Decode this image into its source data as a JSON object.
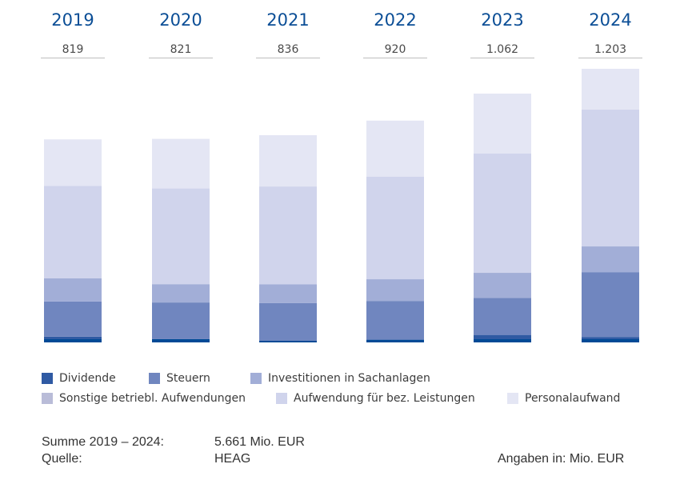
{
  "chart_data": {
    "type": "bar",
    "stacked": true,
    "title": "",
    "xlabel": "",
    "ylabel": "",
    "unit_note": "Angaben in: Mio. EUR",
    "categories": [
      "2019",
      "2020",
      "2021",
      "2022",
      "2023",
      "2024"
    ],
    "totals": [
      "819",
      "821",
      "836",
      "920",
      "1.062",
      "1.203"
    ],
    "total_values": [
      819,
      821,
      836,
      920,
      1062,
      1203
    ],
    "series": [
      {
        "name": "Dividende",
        "color": "#2f5aa3",
        "values": [
          23,
          13,
          7,
          11,
          32,
          24
        ]
      },
      {
        "name": "Steuern",
        "color": "#7086bf",
        "values": [
          142,
          148,
          152,
          161,
          158,
          285
        ]
      },
      {
        "name": "Investitionen in Sachanlagen",
        "color": "#a2aed7",
        "values": [
          94,
          74,
          75,
          90,
          107,
          113
        ]
      },
      {
        "name": "Sonstige betriebl. Aufwendungen",
        "color": "#b9bcd8",
        "values": [
          0,
          0,
          0,
          0,
          0,
          0
        ]
      },
      {
        "name": "Aufwendung für bez. Leistungen",
        "color": "#d0d4ec",
        "values": [
          372,
          386,
          395,
          426,
          510,
          602
        ]
      },
      {
        "name": "Personalaufwand",
        "color": "#e4e6f4",
        "values": [
          188,
          200,
          207,
          232,
          255,
          179
        ]
      }
    ],
    "dividend_base_color": "#004a96",
    "year_label_color": "#0b4e96",
    "grid": false,
    "legend_position": "bottom"
  },
  "footer": {
    "sum_label": "Summe 2019 – 2024:",
    "sum_value": "5.661 Mio. EUR",
    "source_label": "Quelle:",
    "source_value": "HEAG",
    "unit_note": "Angaben in: Mio. EUR"
  }
}
